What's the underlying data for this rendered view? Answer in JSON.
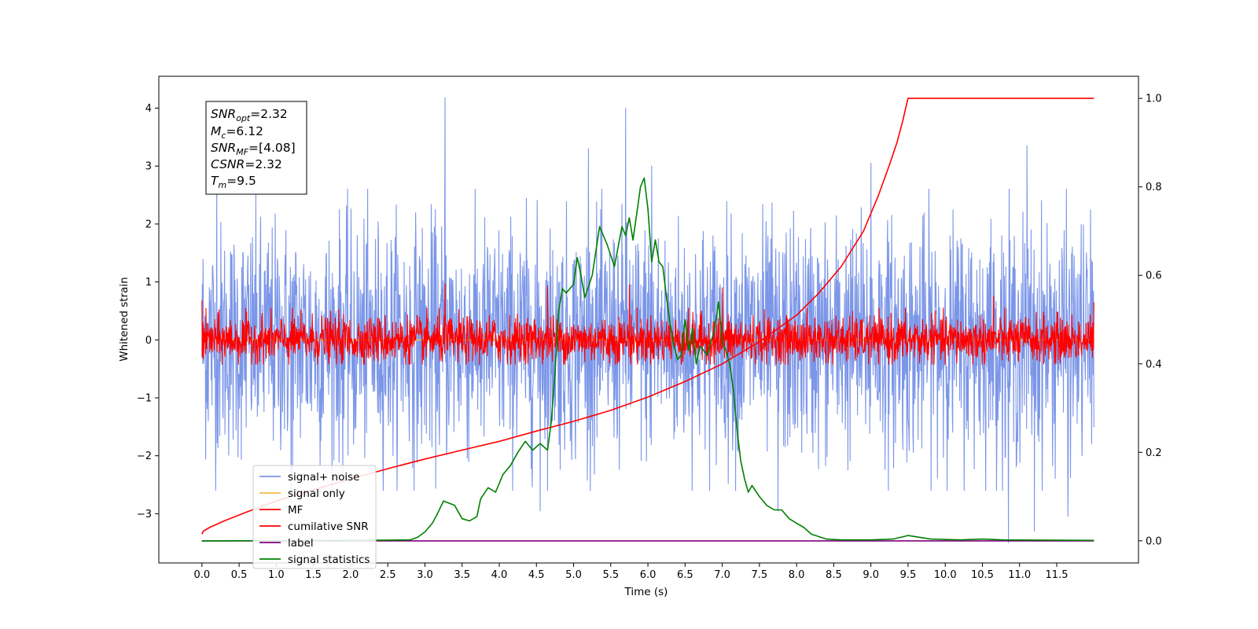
{
  "chart_data": {
    "type": "line",
    "xlabel": "Time (s)",
    "ylabel": "Whitened strain",
    "y2label": "",
    "xlim": [
      -0.58,
      12.6
    ],
    "ylim": [
      -3.85,
      4.55
    ],
    "y2lim": [
      -0.05,
      1.05
    ],
    "x_ticks": [
      "0.0",
      "0.5",
      "1.0",
      "1.5",
      "2.0",
      "2.5",
      "3.0",
      "3.5",
      "4.0",
      "4.5",
      "5.0",
      "5.5",
      "6.0",
      "6.5",
      "7.0",
      "7.5",
      "8.0",
      "8.5",
      "9.0",
      "9.5",
      "10.0",
      "10.5",
      "11.0",
      "11.5"
    ],
    "y_ticks": [
      "4",
      "3",
      "2",
      "1",
      "0",
      "−1",
      "−2",
      "−3"
    ],
    "y2_ticks": [
      "1.0",
      "0.8",
      "0.6",
      "0.4",
      "0.2",
      "0.0"
    ],
    "grid": false,
    "legend_position": "lower-left",
    "info_box": {
      "snr_opt": "=2.32",
      "mc": "=6.12",
      "snr_mf": "=[4.08]",
      "csnr": "=2.32",
      "tm": "=9.5"
    },
    "series": [
      {
        "name": "signal+ noise",
        "axis": "left",
        "color": "#7b96e8",
        "x_range": [
          0.0,
          12.0
        ],
        "amplitude": 1.0,
        "peaks": [
          [
            0.2,
            2.9
          ],
          [
            3.27,
            4.18
          ],
          [
            5.7,
            4.0
          ],
          [
            5.2,
            3.3
          ],
          [
            4.55,
            -2.95
          ],
          [
            7.75,
            -2.95
          ],
          [
            10.85,
            -3.5
          ],
          [
            11.1,
            3.35
          ],
          [
            11.2,
            -3.3
          ],
          [
            11.65,
            -3.05
          ],
          [
            1.2,
            -2.8
          ],
          [
            6.05,
            3.0
          ],
          [
            9.0,
            3.05
          ]
        ]
      },
      {
        "name": "signal only",
        "axis": "left",
        "color": "#f5b94a",
        "x": [
          0.0,
          12.0
        ],
        "y": [
          0.0,
          0.0
        ]
      },
      {
        "name": "MF",
        "axis": "left",
        "color": "#ff0000",
        "x_range": [
          0.0,
          12.0
        ],
        "amplitude": 0.2,
        "peaks": [
          [
            0.0,
            0.68
          ],
          [
            3.27,
            0.97
          ],
          [
            4.65,
            0.93
          ],
          [
            5.75,
            0.95
          ],
          [
            7.0,
            0.9
          ],
          [
            10.65,
            0.75
          ],
          [
            12.0,
            0.65
          ]
        ]
      },
      {
        "name": "cumilative SNR",
        "axis": "right",
        "color": "#ff0000",
        "x": [
          0.0,
          0.02,
          0.1,
          0.3,
          0.6,
          1.0,
          1.5,
          2.0,
          2.5,
          3.0,
          3.5,
          4.0,
          4.5,
          5.0,
          5.5,
          6.0,
          6.5,
          7.0,
          7.5,
          8.0,
          8.3,
          8.6,
          8.9,
          9.1,
          9.25,
          9.35,
          9.43,
          9.47,
          9.5,
          9.6,
          12.0
        ],
        "y": [
          0.015,
          0.022,
          0.03,
          0.045,
          0.065,
          0.09,
          0.115,
          0.14,
          0.163,
          0.185,
          0.205,
          0.225,
          0.248,
          0.27,
          0.295,
          0.325,
          0.36,
          0.4,
          0.45,
          0.51,
          0.56,
          0.62,
          0.7,
          0.78,
          0.85,
          0.9,
          0.95,
          0.98,
          1.0,
          1.0,
          1.0
        ]
      },
      {
        "name": "label",
        "axis": "right",
        "color": "#800080",
        "x": [
          0.0,
          12.0
        ],
        "y": [
          0.0,
          0.0
        ]
      },
      {
        "name": "signal statistics",
        "axis": "right",
        "color": "#008000",
        "x": [
          0.0,
          2.0,
          2.8,
          2.9,
          3.0,
          3.1,
          3.15,
          3.25,
          3.4,
          3.5,
          3.6,
          3.7,
          3.75,
          3.85,
          3.95,
          4.05,
          4.15,
          4.25,
          4.35,
          4.45,
          4.55,
          4.65,
          4.7,
          4.75,
          4.8,
          4.85,
          4.9,
          4.95,
          5.0,
          5.05,
          5.1,
          5.15,
          5.25,
          5.35,
          5.45,
          5.55,
          5.65,
          5.7,
          5.75,
          5.8,
          5.85,
          5.9,
          5.95,
          6.0,
          6.05,
          6.1,
          6.15,
          6.2,
          6.25,
          6.3,
          6.35,
          6.4,
          6.45,
          6.5,
          6.55,
          6.6,
          6.65,
          6.7,
          6.8,
          6.9,
          6.95,
          7.0,
          7.05,
          7.1,
          7.15,
          7.2,
          7.25,
          7.3,
          7.35,
          7.4,
          7.5,
          7.6,
          7.7,
          7.8,
          7.9,
          8.0,
          8.1,
          8.2,
          8.4,
          8.6,
          9.0,
          9.3,
          9.5,
          9.8,
          10.2,
          10.5,
          10.8,
          12.0
        ],
        "y": [
          0.0,
          0.001,
          0.002,
          0.008,
          0.02,
          0.04,
          0.055,
          0.09,
          0.08,
          0.05,
          0.045,
          0.055,
          0.095,
          0.12,
          0.11,
          0.15,
          0.17,
          0.2,
          0.225,
          0.205,
          0.22,
          0.205,
          0.27,
          0.38,
          0.52,
          0.57,
          0.56,
          0.57,
          0.58,
          0.64,
          0.6,
          0.55,
          0.6,
          0.71,
          0.67,
          0.62,
          0.71,
          0.69,
          0.73,
          0.68,
          0.74,
          0.8,
          0.82,
          0.75,
          0.63,
          0.68,
          0.63,
          0.62,
          0.55,
          0.49,
          0.44,
          0.41,
          0.42,
          0.5,
          0.43,
          0.48,
          0.4,
          0.44,
          0.42,
          0.48,
          0.54,
          0.45,
          0.43,
          0.4,
          0.34,
          0.25,
          0.18,
          0.14,
          0.11,
          0.125,
          0.1,
          0.08,
          0.07,
          0.07,
          0.05,
          0.04,
          0.03,
          0.015,
          0.004,
          0.002,
          0.002,
          0.004,
          0.012,
          0.004,
          0.002,
          0.004,
          0.002,
          0.001
        ]
      }
    ]
  }
}
